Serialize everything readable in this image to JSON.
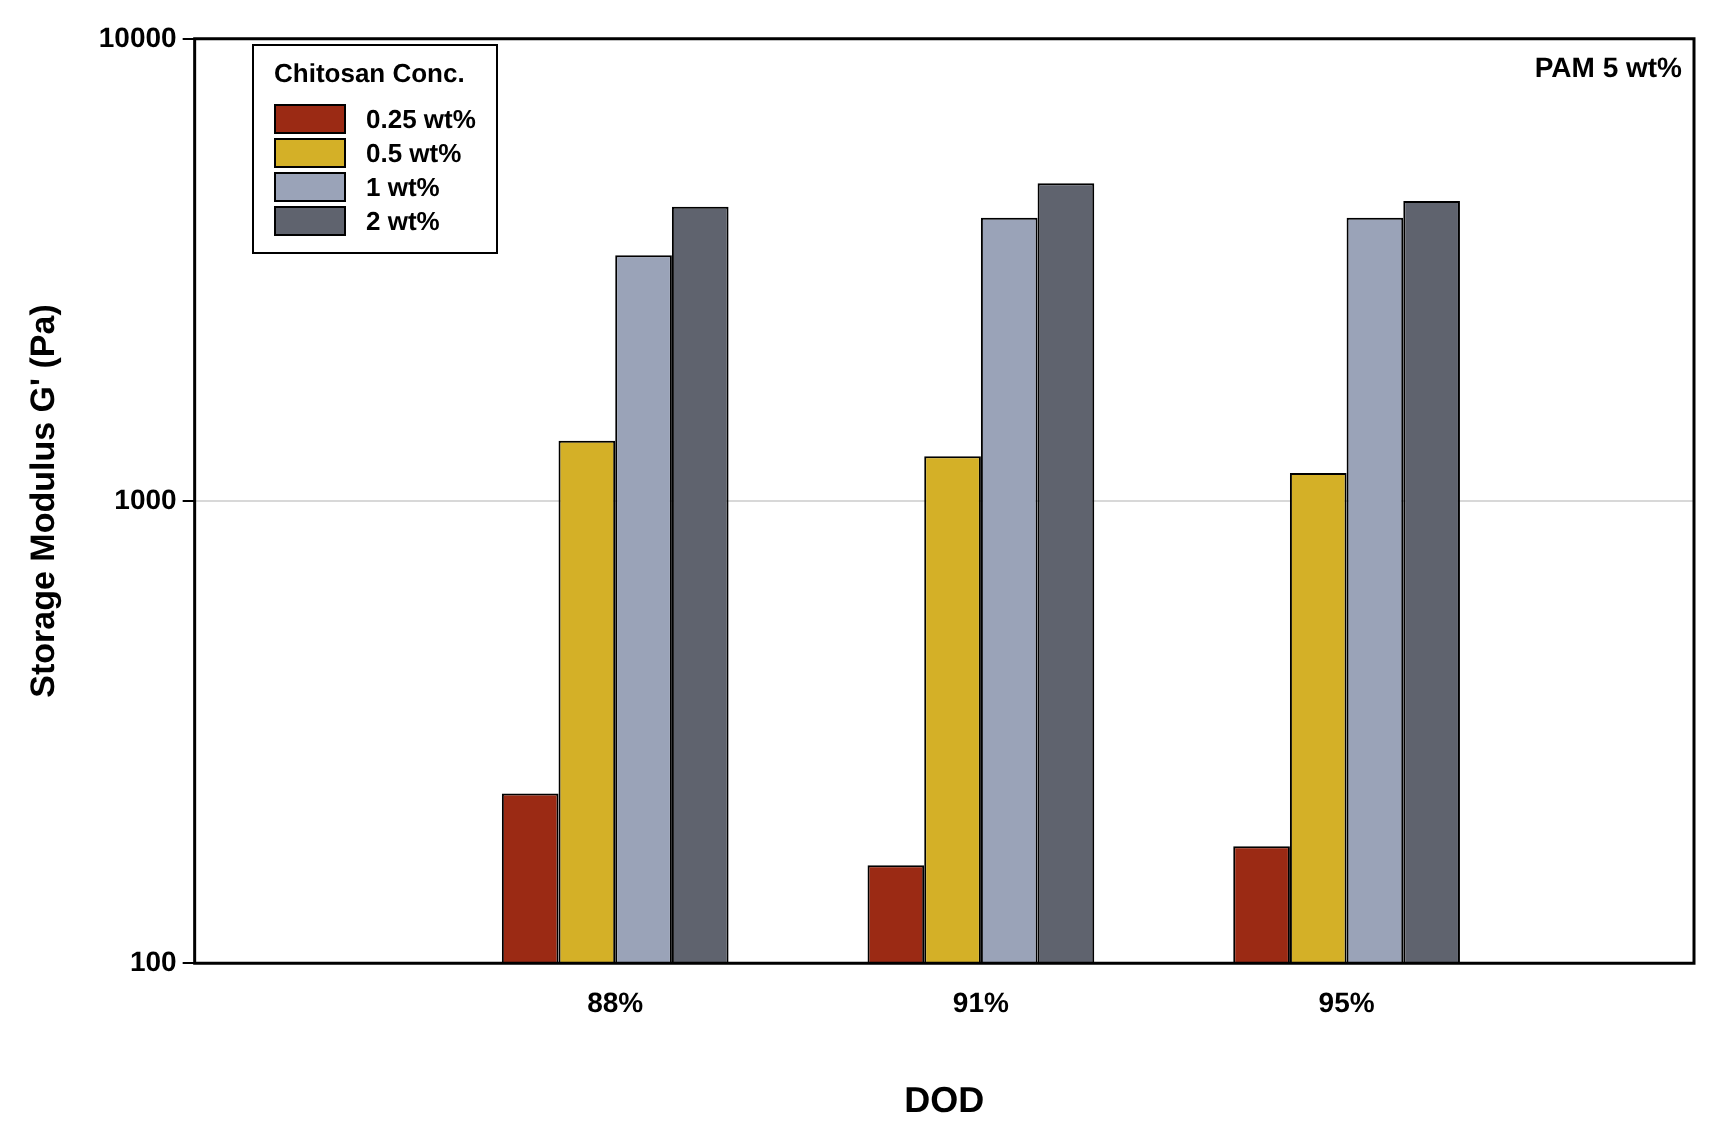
{
  "chart_data": {
    "type": "bar",
    "xlabel": "DOD",
    "ylabel": "Storage Modulus G' (Pa)",
    "legend_title": "Chitosan Conc.",
    "annotations": [
      "PAM 5 wt%"
    ],
    "categories": [
      "88%",
      "91%",
      "95%"
    ],
    "series": [
      {
        "name": "0.25 wt%",
        "color": "#9b2a14",
        "values": [
          233,
          163,
          179
        ]
      },
      {
        "name": "0.5 wt%",
        "color": "#d4b027",
        "values": [
          1350,
          1250,
          1150
        ]
      },
      {
        "name": "1 wt%",
        "color": "#9aa3b8",
        "values": [
          3400,
          4100,
          4100
        ]
      },
      {
        "name": "2 wt%",
        "color": "#5f636e",
        "values": [
          4330,
          4870,
          4460
        ]
      }
    ],
    "log": "y",
    "ylim": [
      100,
      10000
    ],
    "yticks": [
      100,
      1000,
      10000
    ],
    "grid": "y",
    "legend": "top left"
  }
}
